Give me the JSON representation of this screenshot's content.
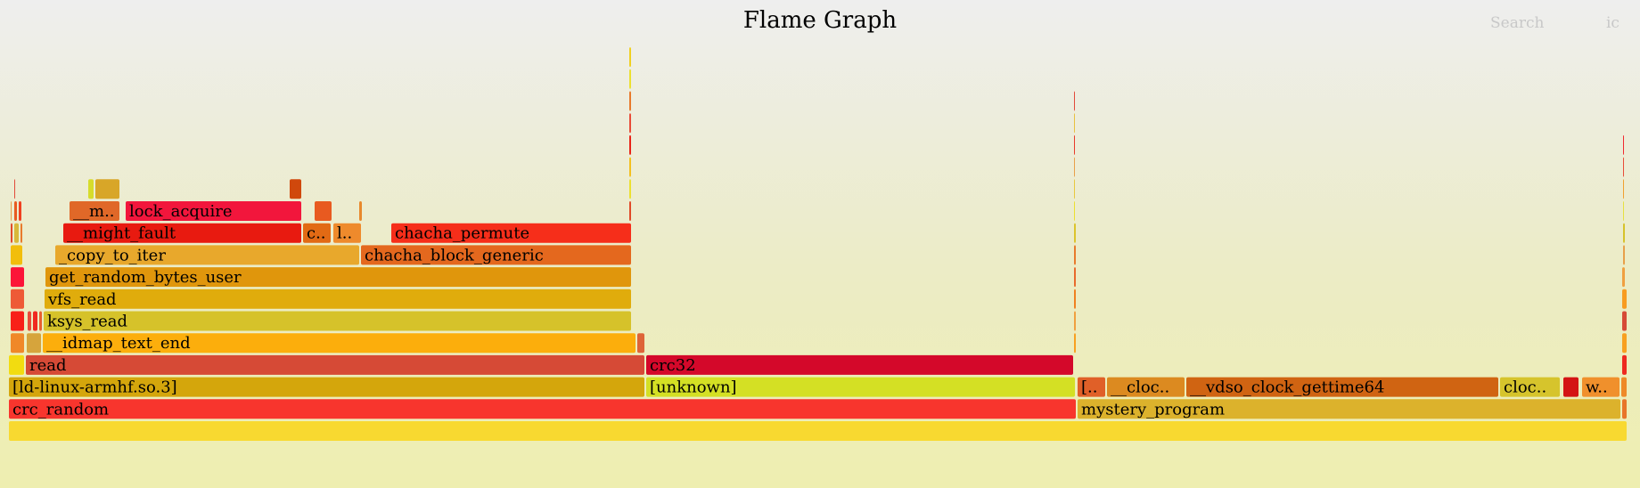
{
  "header": {
    "title": "Flame Graph",
    "search_label": "Search",
    "ic_label": "ic"
  },
  "chart_data": {
    "type": "flame",
    "total": 1816,
    "frames": [
      {
        "depth": 0,
        "start": 0,
        "width": 1816,
        "name": "",
        "label": "",
        "color": "#f8d930"
      },
      {
        "depth": 1,
        "start": 0,
        "width": 1198,
        "name": "crc_random",
        "label": "crc_random",
        "color": "#f8352d"
      },
      {
        "depth": 1,
        "start": 1199,
        "width": 610,
        "name": "mystery_program",
        "label": "mystery_program",
        "color": "#dcb22c"
      },
      {
        "depth": 1,
        "start": 1810,
        "width": 6,
        "name": "",
        "label": "",
        "color": "#e8752a"
      },
      {
        "depth": 2,
        "start": 0,
        "width": 714,
        "name": "[ld-linux-armhf.so.3]",
        "label": "[ld-linux-armhf.so.3]",
        "color": "#d4a60c"
      },
      {
        "depth": 2,
        "start": 715,
        "width": 482,
        "name": "[unknown]",
        "label": "[unknown]",
        "color": "#d4e024"
      },
      {
        "depth": 2,
        "start": 1199,
        "width": 32,
        "name": "[..",
        "label": "[..",
        "color": "#e06028"
      },
      {
        "depth": 2,
        "start": 1232,
        "width": 88,
        "name": "__clock_gettime",
        "label": "__cloc..",
        "color": "#dc8a20"
      },
      {
        "depth": 2,
        "start": 1321,
        "width": 351,
        "name": "__vdso_clock_gettime64",
        "label": "__vdso_clock_gettime64",
        "color": "#d06412"
      },
      {
        "depth": 2,
        "start": 1673,
        "width": 68,
        "name": "clock_gettime",
        "label": "cloc..",
        "color": "#d6c42c"
      },
      {
        "depth": 2,
        "start": 1744,
        "width": 18,
        "name": "",
        "label": "",
        "color": "#d41414"
      },
      {
        "depth": 2,
        "start": 1765,
        "width": 43,
        "name": "w..",
        "label": "w..",
        "color": "#f0902c"
      },
      {
        "depth": 2,
        "start": 1809,
        "width": 7,
        "name": "",
        "label": "",
        "color": "#ee8a28"
      },
      {
        "depth": 3,
        "start": 0,
        "width": 18,
        "name": "",
        "label": "",
        "color": "#f2dc10"
      },
      {
        "depth": 3,
        "start": 19,
        "width": 695,
        "name": "read",
        "label": "read",
        "color": "#d64a36"
      },
      {
        "depth": 3,
        "start": 715,
        "width": 480,
        "name": "crc32",
        "label": "crc32",
        "color": "#d4082a"
      },
      {
        "depth": 3,
        "start": 1810,
        "width": 6,
        "name": "",
        "label": "",
        "color": "#ee2a20"
      },
      {
        "depth": 4,
        "start": 2,
        "width": 16,
        "name": "",
        "label": "",
        "color": "#f08828"
      },
      {
        "depth": 4,
        "start": 20,
        "width": 17,
        "name": "",
        "label": "",
        "color": "#d6a43c"
      },
      {
        "depth": 4,
        "start": 38,
        "width": 666,
        "name": "__idmap_text_end",
        "label": "__idmap_text_end",
        "color": "#fcae0c"
      },
      {
        "depth": 4,
        "start": 705,
        "width": 9,
        "name": "",
        "label": "",
        "color": "#de6438"
      },
      {
        "depth": 4,
        "start": 1195,
        "width": 3,
        "name": "",
        "label": "",
        "color": "#f8a020"
      },
      {
        "depth": 4,
        "start": 1810,
        "width": 6,
        "name": "",
        "label": "",
        "color": "#f8a020"
      },
      {
        "depth": 5,
        "start": 2,
        "width": 16,
        "name": "",
        "label": "",
        "color": "#f82018"
      },
      {
        "depth": 5,
        "start": 21,
        "width": 5,
        "name": "",
        "label": "",
        "color": "#e84c38"
      },
      {
        "depth": 5,
        "start": 27,
        "width": 6,
        "name": "",
        "label": "",
        "color": "#f02820"
      },
      {
        "depth": 5,
        "start": 34,
        "width": 4,
        "name": "",
        "label": "",
        "color": "#e86030"
      },
      {
        "depth": 5,
        "start": 39,
        "width": 660,
        "name": "ksys_read",
        "label": "ksys_read",
        "color": "#d6c22a"
      },
      {
        "depth": 5,
        "start": 1195,
        "width": 3,
        "name": "",
        "label": "",
        "color": "#f0a040"
      },
      {
        "depth": 5,
        "start": 1810,
        "width": 6,
        "name": "",
        "label": "",
        "color": "#d64a36"
      },
      {
        "depth": 6,
        "start": 2,
        "width": 16,
        "name": "",
        "label": "",
        "color": "#ee5a36"
      },
      {
        "depth": 6,
        "start": 40,
        "width": 659,
        "name": "vfs_read",
        "label": "vfs_read",
        "color": "#e0ac0c"
      },
      {
        "depth": 6,
        "start": 1195,
        "width": 3,
        "name": "",
        "label": "",
        "color": "#f08020"
      },
      {
        "depth": 6,
        "start": 1810,
        "width": 6,
        "name": "",
        "label": "",
        "color": "#f89c20"
      },
      {
        "depth": 7,
        "start": 2,
        "width": 16,
        "name": "",
        "label": "",
        "color": "#fc1438"
      },
      {
        "depth": 7,
        "start": 41,
        "width": 658,
        "name": "get_random_bytes_user",
        "label": "get_random_bytes_user",
        "color": "#e0960c"
      },
      {
        "depth": 7,
        "start": 1195,
        "width": 3,
        "name": "",
        "label": "",
        "color": "#e86a2c"
      },
      {
        "depth": 7,
        "start": 1810,
        "width": 4,
        "name": "",
        "label": "",
        "color": "#f0a040"
      },
      {
        "depth": 8,
        "start": 2,
        "width": 14,
        "name": "",
        "label": "",
        "color": "#f2be0c"
      },
      {
        "depth": 8,
        "start": 52,
        "width": 342,
        "name": "_copy_to_iter",
        "label": "_copy_to_iter",
        "color": "#e8a82c"
      },
      {
        "depth": 8,
        "start": 395,
        "width": 304,
        "name": "chacha_block_generic",
        "label": "chacha_block_generic",
        "color": "#e4681e"
      },
      {
        "depth": 8,
        "start": 1195,
        "width": 3,
        "name": "",
        "label": "",
        "color": "#e87a2c"
      },
      {
        "depth": 8,
        "start": 1811,
        "width": 3,
        "name": "",
        "label": "",
        "color": "#e8a04a"
      },
      {
        "depth": 9,
        "start": 2,
        "width": 3,
        "name": "",
        "label": "",
        "color": "#e24a2a"
      },
      {
        "depth": 9,
        "start": 6,
        "width": 6,
        "name": "",
        "label": "",
        "color": "#d8b83a"
      },
      {
        "depth": 9,
        "start": 13,
        "width": 3,
        "name": "",
        "label": "",
        "color": "#e87a2c"
      },
      {
        "depth": 9,
        "start": 61,
        "width": 268,
        "name": "__might_fault",
        "label": "__might_fault",
        "color": "#e81a10"
      },
      {
        "depth": 9,
        "start": 330,
        "width": 32,
        "name": "c..",
        "label": "c..",
        "color": "#e26a14"
      },
      {
        "depth": 9,
        "start": 364,
        "width": 32,
        "name": "l..",
        "label": "l..",
        "color": "#ee8a2c"
      },
      {
        "depth": 9,
        "start": 429,
        "width": 270,
        "name": "chacha_permute",
        "label": "chacha_permute",
        "color": "#f62e1a"
      },
      {
        "depth": 9,
        "start": 1195,
        "width": 3,
        "name": "",
        "label": "",
        "color": "#dcc42c"
      },
      {
        "depth": 9,
        "start": 1811,
        "width": 3,
        "name": "",
        "label": "",
        "color": "#d6c22a"
      },
      {
        "depth": 10,
        "start": 2,
        "width": 2,
        "name": "",
        "label": "",
        "color": "#e8a04a"
      },
      {
        "depth": 10,
        "start": 6,
        "width": 4,
        "name": "",
        "label": "",
        "color": "#e85a20"
      },
      {
        "depth": 10,
        "start": 11,
        "width": 4,
        "name": "",
        "label": "",
        "color": "#f04020"
      },
      {
        "depth": 10,
        "start": 68,
        "width": 57,
        "name": "__m..",
        "label": "__m..",
        "color": "#e06828"
      },
      {
        "depth": 10,
        "start": 131,
        "width": 198,
        "name": "lock_acquire",
        "label": "lock_acquire",
        "color": "#f2163c"
      },
      {
        "depth": 10,
        "start": 343,
        "width": 20,
        "name": "",
        "label": "",
        "color": "#e85a20"
      },
      {
        "depth": 10,
        "start": 393,
        "width": 4,
        "name": "",
        "label": "",
        "color": "#e8882c"
      },
      {
        "depth": 10,
        "start": 696,
        "width": 3,
        "name": "",
        "label": "",
        "color": "#e04a28"
      },
      {
        "depth": 10,
        "start": 1195,
        "width": 2,
        "name": "",
        "label": "",
        "color": "#ece030"
      },
      {
        "depth": 10,
        "start": 1811,
        "width": 2,
        "name": "",
        "label": "",
        "color": "#e8e040"
      },
      {
        "depth": 11,
        "start": 6,
        "width": 2,
        "name": "",
        "label": "",
        "color": "#e24a3a"
      },
      {
        "depth": 11,
        "start": 89,
        "width": 7,
        "name": "",
        "label": "",
        "color": "#d6dc2c"
      },
      {
        "depth": 11,
        "start": 97,
        "width": 28,
        "name": "",
        "label": "",
        "color": "#d8a628"
      },
      {
        "depth": 11,
        "start": 315,
        "width": 14,
        "name": "",
        "label": "",
        "color": "#d0480c"
      },
      {
        "depth": 11,
        "start": 696,
        "width": 3,
        "name": "",
        "label": "",
        "color": "#ece030"
      },
      {
        "depth": 11,
        "start": 1195,
        "width": 2,
        "name": "",
        "label": "",
        "color": "#e8c840"
      },
      {
        "depth": 11,
        "start": 1811,
        "width": 2,
        "name": "",
        "label": "",
        "color": "#f0a030"
      },
      {
        "depth": 12,
        "start": 696,
        "width": 3,
        "name": "",
        "label": "",
        "color": "#f4c020"
      },
      {
        "depth": 12,
        "start": 1195,
        "width": 2,
        "name": "",
        "label": "",
        "color": "#e8a04a"
      },
      {
        "depth": 12,
        "start": 1811,
        "width": 2,
        "name": "",
        "label": "",
        "color": "#e84c38"
      },
      {
        "depth": 13,
        "start": 696,
        "width": 3,
        "name": "",
        "label": "",
        "color": "#e82418"
      },
      {
        "depth": 13,
        "start": 1195,
        "width": 2,
        "name": "",
        "label": "",
        "color": "#e83a2a"
      },
      {
        "depth": 13,
        "start": 1811,
        "width": 2,
        "name": "",
        "label": "",
        "color": "#f02a30"
      },
      {
        "depth": 14,
        "start": 696,
        "width": 3,
        "name": "",
        "label": "",
        "color": "#e84c38"
      },
      {
        "depth": 14,
        "start": 1195,
        "width": 2,
        "name": "",
        "label": "",
        "color": "#e8c040"
      },
      {
        "depth": 15,
        "start": 696,
        "width": 3,
        "name": "",
        "label": "",
        "color": "#e87a2c"
      },
      {
        "depth": 15,
        "start": 1195,
        "width": 2,
        "name": "",
        "label": "",
        "color": "#e24a3a"
      },
      {
        "depth": 16,
        "start": 696,
        "width": 3,
        "name": "",
        "label": "",
        "color": "#ece030"
      },
      {
        "depth": 17,
        "start": 696,
        "width": 3,
        "name": "",
        "label": "",
        "color": "#f0d020"
      }
    ]
  }
}
